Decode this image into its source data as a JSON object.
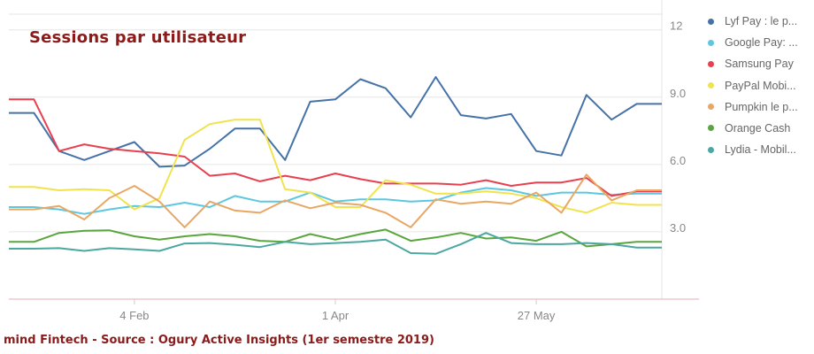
{
  "title": "Sessions par utilisateur",
  "source": "mind Fintech - Source : Ogury Active Insights (1er semestre 2019)",
  "legend": [
    {
      "label": "Lyf Pay : le p..."
    },
    {
      "label": "Google Pay: ..."
    },
    {
      "label": "Samsung Pay"
    },
    {
      "label": "PayPal Mobi..."
    },
    {
      "label": "Pumpkin le p..."
    },
    {
      "label": "Orange Cash"
    },
    {
      "label": "Lydia - Mobil..."
    }
  ],
  "chart_data": {
    "type": "line",
    "title": "Sessions par utilisateur",
    "y_ticks": [
      "12",
      "9.0",
      "6.0",
      "3.0"
    ],
    "y_tick_values": [
      12,
      9,
      6,
      3
    ],
    "ylim": [
      0,
      12.7
    ],
    "x_tick_labels": [
      {
        "label": "4 Feb",
        "index": 5
      },
      {
        "label": "1 Apr",
        "index": 13
      },
      {
        "label": "27 May",
        "index": 21
      }
    ],
    "x_count": 27,
    "grid": "horizontal",
    "legend_position": "right",
    "series": [
      {
        "name": "Lyf Pay : le p...",
        "color": "#4572a7",
        "values": [
          8.3,
          8.3,
          6.6,
          6.2,
          6.6,
          7.0,
          5.9,
          5.95,
          6.7,
          7.6,
          7.6,
          6.2,
          8.8,
          8.9,
          9.8,
          9.4,
          8.1,
          9.9,
          8.2,
          8.05,
          8.25,
          6.6,
          6.4,
          9.1,
          8.0,
          8.7,
          8.7
        ]
      },
      {
        "name": "Google Pay: ...",
        "color": "#5bc8e0",
        "values": [
          4.1,
          4.1,
          4.0,
          3.8,
          4.0,
          4.15,
          4.1,
          4.3,
          4.1,
          4.6,
          4.35,
          4.35,
          4.75,
          4.35,
          4.45,
          4.45,
          4.35,
          4.4,
          4.75,
          4.95,
          4.85,
          4.6,
          4.75,
          4.75,
          4.65,
          4.7,
          4.7
        ]
      },
      {
        "name": "Samsung Pay",
        "color": "#e8404f",
        "values": [
          8.9,
          8.9,
          6.6,
          6.9,
          6.7,
          6.6,
          6.5,
          6.35,
          5.5,
          5.6,
          5.25,
          5.5,
          5.3,
          5.6,
          5.35,
          5.15,
          5.15,
          5.15,
          5.1,
          5.3,
          5.05,
          5.2,
          5.2,
          5.4,
          4.6,
          4.8,
          4.8
        ]
      },
      {
        "name": "PayPal Mobi...",
        "color": "#f0e34e",
        "values": [
          5.0,
          5.0,
          4.85,
          4.9,
          4.85,
          4.0,
          4.5,
          7.1,
          7.8,
          8.0,
          8.0,
          4.9,
          4.75,
          4.1,
          4.1,
          5.3,
          5.1,
          4.7,
          4.7,
          4.8,
          4.7,
          4.5,
          4.1,
          3.85,
          4.3,
          4.2,
          4.2
        ]
      },
      {
        "name": "Pumpkin le p...",
        "color": "#e8a763",
        "values": [
          4.0,
          4.0,
          4.15,
          3.55,
          4.5,
          5.05,
          4.35,
          3.2,
          4.35,
          3.95,
          3.85,
          4.4,
          4.05,
          4.3,
          4.2,
          3.85,
          3.2,
          4.45,
          4.25,
          4.35,
          4.25,
          4.75,
          3.85,
          5.55,
          4.4,
          4.85,
          4.85
        ]
      },
      {
        "name": "Orange Cash",
        "color": "#5aa63e",
        "values": [
          2.55,
          2.55,
          2.95,
          3.05,
          3.07,
          2.8,
          2.65,
          2.8,
          2.9,
          2.8,
          2.6,
          2.55,
          2.9,
          2.65,
          2.9,
          3.1,
          2.6,
          2.75,
          2.95,
          2.7,
          2.75,
          2.6,
          3.0,
          2.35,
          2.45,
          2.55,
          2.55
        ]
      },
      {
        "name": "Lydia - Mobil...",
        "color": "#4aa8a0",
        "values": [
          2.25,
          2.25,
          2.27,
          2.15,
          2.27,
          2.22,
          2.15,
          2.48,
          2.5,
          2.42,
          2.32,
          2.55,
          2.45,
          2.5,
          2.55,
          2.65,
          2.05,
          2.02,
          2.45,
          2.95,
          2.5,
          2.45,
          2.45,
          2.5,
          2.45,
          2.3,
          2.3
        ]
      }
    ]
  }
}
